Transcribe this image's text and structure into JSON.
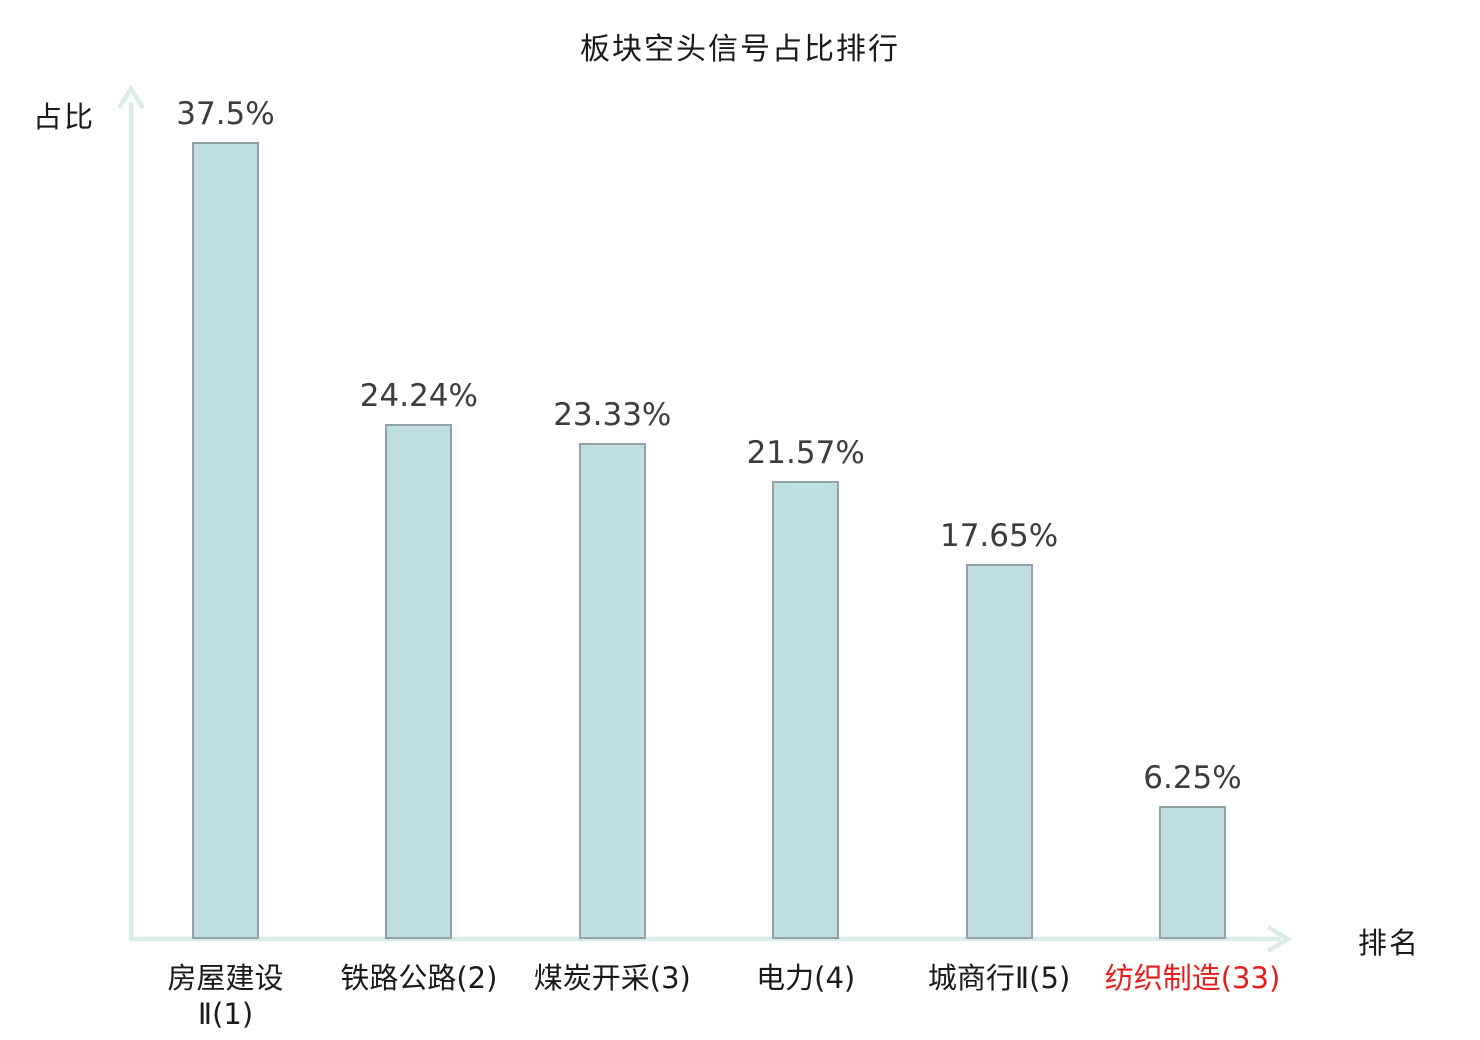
{
  "chart_data": {
    "type": "bar",
    "title": "板块空头信号占比排行",
    "xlabel": "排名",
    "ylabel": "占比",
    "categories": [
      "房屋建设Ⅱ(1)",
      "铁路公路(2)",
      "煤炭开采(3)",
      "电力(4)",
      "城商行Ⅱ(5)",
      "纺织制造(33)"
    ],
    "values": [
      37.5,
      24.24,
      23.33,
      21.57,
      17.65,
      6.25
    ],
    "bars": [
      {
        "category_lines": [
          "房屋建设",
          "Ⅱ(1)"
        ],
        "value": 37.5,
        "value_label": "37.5%",
        "highlighted": false
      },
      {
        "category_lines": [
          "铁路公路(2)"
        ],
        "value": 24.24,
        "value_label": "24.24%",
        "highlighted": false
      },
      {
        "category_lines": [
          "煤炭开采(3)"
        ],
        "value": 23.33,
        "value_label": "23.33%",
        "highlighted": false
      },
      {
        "category_lines": [
          "电力(4)"
        ],
        "value": 21.57,
        "value_label": "21.57%",
        "highlighted": false
      },
      {
        "category_lines": [
          "城商行Ⅱ(5)"
        ],
        "value": 17.65,
        "value_label": "17.65%",
        "highlighted": false
      },
      {
        "category_lines": [
          "纺织制造(33)"
        ],
        "value": 6.25,
        "value_label": "6.25%",
        "highlighted": true
      }
    ],
    "ylim": [
      0,
      40
    ],
    "grid": false,
    "legend": false,
    "colors": {
      "bar_fill": "#bedee2",
      "bar_border": "#90a4a8",
      "axis": "#d9ece8",
      "text": "#1a1a1a",
      "value_text": "#3c3c3c",
      "highlight_text": "#e81c1c"
    }
  }
}
